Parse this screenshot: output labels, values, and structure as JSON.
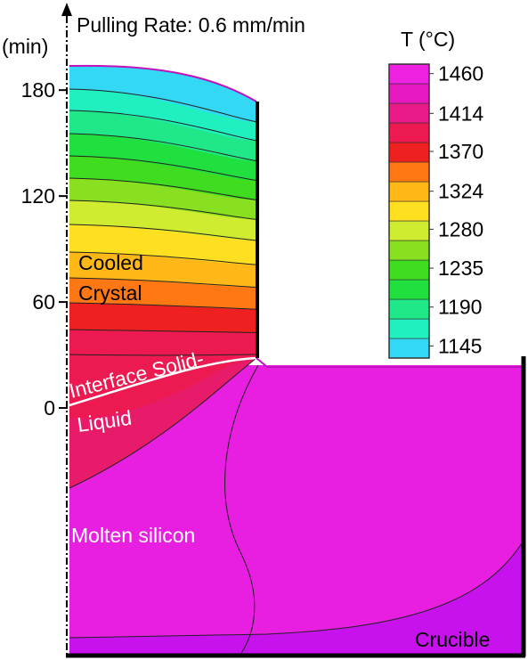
{
  "chart_data": {
    "type": "contour",
    "title": "Pulling Rate: 0.6 mm/min",
    "y_label": "(min)",
    "ylim": [
      -140,
      228
    ],
    "yticks": [
      0,
      60,
      120,
      180
    ],
    "colorbar": {
      "label": "T (°C)",
      "clim": [
        1131,
        1471
      ],
      "ticks": [
        1460,
        1414,
        1370,
        1324,
        1280,
        1235,
        1190,
        1145
      ],
      "colors": [
        "#33d8f5",
        "#20f0c0",
        "#20e888",
        "#20e040",
        "#40dc20",
        "#88e020",
        "#d0ec30",
        "#ffe020",
        "#ffb818",
        "#ff7814",
        "#ee2020",
        "#ec1a50",
        "#e81a88",
        "#e818c0",
        "#ee22e0"
      ]
    },
    "annotations": {
      "cooled": "Cooled",
      "crystal": "Crystal",
      "interface": "Interface Solid-",
      "liquid": "Liquid",
      "molten": "Molten silicon",
      "crucible": "Crucible"
    }
  }
}
